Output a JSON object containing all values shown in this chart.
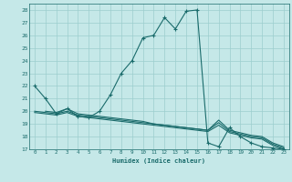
{
  "xlabel": "Humidex (Indice chaleur)",
  "bg_color": "#c5e8e8",
  "grid_color": "#9ccece",
  "line_color": "#1a6b6b",
  "xlim": [
    -0.5,
    23.5
  ],
  "ylim": [
    17,
    28.5
  ],
  "yticks": [
    17,
    18,
    19,
    20,
    21,
    22,
    23,
    24,
    25,
    26,
    27,
    28
  ],
  "xticks": [
    0,
    1,
    2,
    3,
    4,
    5,
    6,
    7,
    8,
    9,
    10,
    11,
    12,
    13,
    14,
    15,
    16,
    17,
    18,
    19,
    20,
    21,
    22,
    23
  ],
  "line1_x": [
    0,
    1,
    2,
    3,
    4,
    5,
    6,
    7,
    8,
    9,
    10,
    11,
    12,
    13,
    14,
    15,
    16,
    17,
    18,
    19,
    20,
    21,
    22,
    23
  ],
  "line1_y": [
    22.0,
    21.0,
    19.8,
    20.2,
    19.6,
    19.5,
    20.0,
    21.3,
    23.0,
    24.0,
    25.8,
    26.0,
    27.4,
    26.5,
    27.9,
    28.0,
    17.5,
    17.2,
    18.7,
    18.0,
    17.5,
    17.2,
    17.1,
    17.0
  ],
  "line2_x": [
    0,
    1,
    2,
    3,
    4,
    5,
    6,
    7,
    8,
    9,
    10,
    11,
    12,
    13,
    14,
    15,
    16,
    17,
    18,
    19,
    20,
    21,
    22,
    23
  ],
  "line2_y": [
    19.9,
    19.8,
    19.7,
    19.9,
    19.6,
    19.5,
    19.4,
    19.3,
    19.2,
    19.1,
    19.0,
    18.9,
    18.8,
    18.7,
    18.6,
    18.5,
    18.4,
    18.9,
    18.3,
    18.1,
    17.9,
    17.8,
    17.3,
    17.0
  ],
  "line3_x": [
    0,
    1,
    2,
    3,
    4,
    5,
    6,
    7,
    8,
    9,
    10,
    11,
    12,
    13,
    14,
    15,
    16,
    17,
    18,
    19,
    20,
    21,
    22,
    23
  ],
  "line3_y": [
    20.0,
    19.9,
    19.8,
    20.0,
    19.7,
    19.6,
    19.5,
    19.4,
    19.3,
    19.2,
    19.1,
    19.0,
    18.9,
    18.8,
    18.7,
    18.6,
    18.5,
    19.1,
    18.4,
    18.2,
    18.0,
    17.9,
    17.4,
    17.1
  ],
  "line4_x": [
    1,
    2,
    3,
    4,
    5,
    6,
    7,
    8,
    9,
    10,
    11,
    12,
    13,
    14,
    15,
    16,
    17,
    18,
    19,
    20,
    21,
    22,
    23
  ],
  "line4_y": [
    20.0,
    19.9,
    20.2,
    19.8,
    19.7,
    19.6,
    19.5,
    19.4,
    19.3,
    19.2,
    19.0,
    18.9,
    18.8,
    18.7,
    18.6,
    18.5,
    19.3,
    18.5,
    18.3,
    18.1,
    18.0,
    17.5,
    17.2
  ]
}
